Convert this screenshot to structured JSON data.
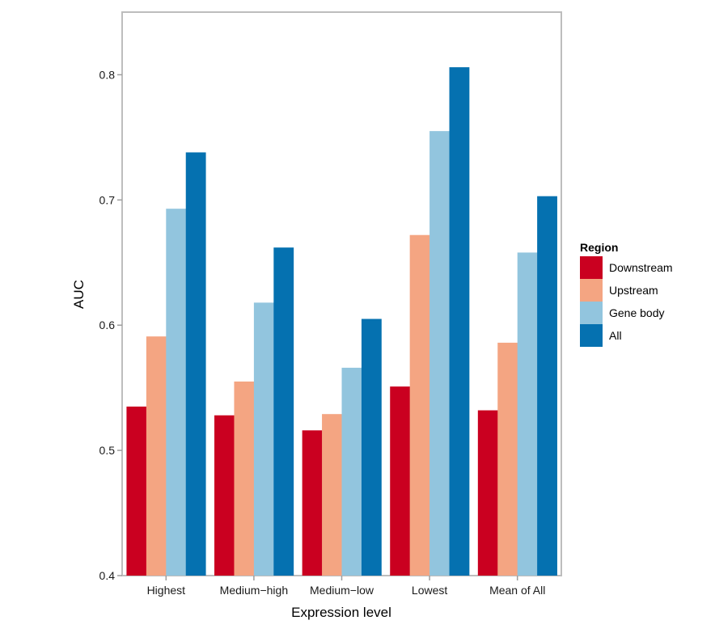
{
  "chart_data": {
    "type": "bar",
    "title": "",
    "xlabel": "Expression level",
    "ylabel": "AUC",
    "ylim": [
      0.4,
      0.85
    ],
    "yticks": [
      0.4,
      0.5,
      0.6,
      0.7,
      0.8
    ],
    "ytick_labels": [
      "0.4",
      "0.5",
      "0.6",
      "0.7",
      "0.8"
    ],
    "grid": false,
    "categories": [
      "Highest",
      "Medium−high",
      "Medium−low",
      "Lowest",
      "Mean of All"
    ],
    "legend": {
      "title": "Region",
      "placement": "right"
    },
    "series": [
      {
        "name": "Downstream",
        "color": "#CA0020",
        "values": [
          0.535,
          0.528,
          0.516,
          0.551,
          0.532
        ]
      },
      {
        "name": "Upstream",
        "color": "#F4A582",
        "values": [
          0.591,
          0.555,
          0.529,
          0.672,
          0.586
        ]
      },
      {
        "name": "Gene body",
        "color": "#92C5DE",
        "values": [
          0.693,
          0.618,
          0.566,
          0.755,
          0.658
        ]
      },
      {
        "name": "All",
        "color": "#0571B0",
        "values": [
          0.738,
          0.662,
          0.605,
          0.806,
          0.703
        ]
      }
    ]
  }
}
